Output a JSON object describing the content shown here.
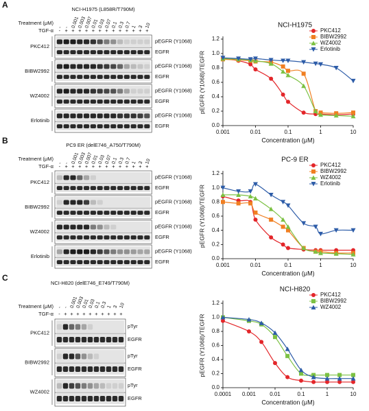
{
  "panels": [
    {
      "letter": "A",
      "blot": {
        "title": "NCI-H1975 (L858R/T790M)",
        "treatment_label": "Treatment (μM)",
        "tgf_label": "TGF-α",
        "treatments": [
          "-",
          "-",
          "0.001",
          "0.003",
          "0.007",
          "0.01",
          "0.03",
          "0.07",
          "0.1",
          "0.3",
          "0.7",
          "1",
          "3",
          "10"
        ],
        "tgf": [
          "-",
          "+",
          "+",
          "+",
          "+",
          "+",
          "+",
          "+",
          "+",
          "+",
          "+",
          "+",
          "+",
          "+"
        ],
        "phospho_label": "pEGFR (Y1068)",
        "total_label": "EGFR",
        "rows": [
          {
            "drug": "PKC412",
            "phospho": [
              0.9,
              0.95,
              0.95,
              0.9,
              0.9,
              0.85,
              0.7,
              0.5,
              0.4,
              0.2,
              0.1,
              0.1,
              0.1,
              0.1
            ]
          },
          {
            "drug": "BIBW2992",
            "phospho": [
              0.9,
              0.95,
              0.9,
              0.9,
              0.9,
              0.9,
              0.85,
              0.8,
              0.75,
              0.6,
              0.3,
              0.2,
              0.15,
              0.1
            ]
          },
          {
            "drug": "WZ4002",
            "phospho": [
              0.9,
              0.95,
              0.9,
              0.9,
              0.9,
              0.85,
              0.8,
              0.75,
              0.7,
              0.5,
              0.3,
              0.1,
              0.1,
              0.1
            ]
          },
          {
            "drug": "Erlotinib",
            "phospho": [
              0.9,
              0.9,
              0.9,
              0.9,
              0.9,
              0.9,
              0.9,
              0.9,
              0.9,
              0.85,
              0.85,
              0.85,
              0.8,
              0.7
            ]
          }
        ]
      }
    },
    {
      "letter": "B",
      "blot": {
        "title": "PC9 ER (delE746_A750/T790M)",
        "treatment_label": "Treatment (μM)",
        "tgf_label": "TGF-α",
        "treatments": [
          "-",
          "-",
          "0.001",
          "0.003",
          "0.007",
          "0.01",
          "0.03",
          "0.07",
          "0.1",
          "0.3",
          "0.7",
          "1",
          "3",
          "10"
        ],
        "tgf": [
          "-",
          "+",
          "+",
          "+",
          "+",
          "+",
          "+",
          "+",
          "+",
          "+",
          "+",
          "+",
          "+",
          "+"
        ],
        "phospho_label": "pEGFR (Y1068)",
        "total_label": "EGFR",
        "rows": [
          {
            "drug": "PKC412",
            "phospho": [
              0.2,
              0.9,
              0.9,
              0.6,
              0.3,
              0.1,
              0,
              0,
              0,
              0,
              0,
              0,
              0,
              0
            ]
          },
          {
            "drug": "BIBW2992",
            "phospho": [
              0.1,
              0.9,
              0.9,
              0.9,
              0.8,
              0.2,
              0.1,
              0,
              0,
              0,
              0,
              0,
              0,
              0
            ]
          },
          {
            "drug": "WZ4002",
            "phospho": [
              0.9,
              0.9,
              0.9,
              0.9,
              0.9,
              0.5,
              0.4,
              0.2,
              0.1,
              0,
              0,
              0,
              0,
              0
            ]
          },
          {
            "drug": "Erlotinib",
            "phospho": [
              0.3,
              0.9,
              0.95,
              0.95,
              0.95,
              0.9,
              0.8,
              0.7,
              0.5,
              0.4,
              0.4,
              0.35,
              0.3,
              0.3
            ]
          }
        ]
      }
    },
    {
      "letter": "C",
      "blot": {
        "title": "NCI-H820 (delE746_E749/T790M)",
        "treatment_label": "Treatment (μM)",
        "tgf_label": "TGF-α",
        "treatments": [
          "-",
          "-",
          "0.001",
          "0.003",
          "0.01",
          "0.03",
          "0.1",
          "0.3",
          "1",
          "3",
          "10"
        ],
        "tgf": [
          "-",
          "+",
          "+",
          "+",
          "+",
          "+",
          "+",
          "+",
          "+",
          "+",
          "+"
        ],
        "phospho_label": "pTyr",
        "total_label": "EGFR",
        "rows": [
          {
            "drug": "PKC412",
            "phospho": [
              0.1,
              0.9,
              0.6,
              0.5,
              0.3,
              0.1,
              0,
              0,
              0,
              0,
              0
            ]
          },
          {
            "drug": "BIBW2992",
            "phospho": [
              0.1,
              0.9,
              0.9,
              0.7,
              0.4,
              0.2,
              0.1,
              0,
              0,
              0,
              0
            ]
          },
          {
            "drug": "WZ4002",
            "phospho": [
              0.2,
              0.9,
              0.8,
              0.7,
              0.5,
              0.4,
              0.3,
              0.2,
              0.1,
              0.1,
              0.1
            ]
          }
        ]
      }
    }
  ],
  "chart_data": [
    {
      "type": "scatter",
      "title": "NCI-H1975",
      "x_label": "Concentration (μM)",
      "y_label": "pEGFR (Y1068)/TEGFR",
      "x_scale": "log",
      "xlim": [
        0.001,
        10
      ],
      "xticks": [
        0.001,
        0.01,
        0.1,
        1,
        10
      ],
      "ylim": [
        0,
        1.2
      ],
      "yticks": [
        {
          "value": 0,
          "label": "0.0"
        },
        0.2,
        0.4,
        0.6,
        0.8,
        {
          "value": 1,
          "label": "1.0"
        },
        1.2
      ],
      "legend": "upper right",
      "x": [
        0.001,
        0.003,
        0.007,
        0.01,
        0.03,
        0.07,
        0.1,
        0.3,
        0.7,
        1,
        3,
        10
      ],
      "series": [
        {
          "name": "PKC412",
          "color": "#e3262a",
          "marker": "circle",
          "values": [
            0.93,
            0.9,
            0.85,
            0.78,
            0.65,
            0.43,
            0.33,
            0.18,
            0.16,
            0.16,
            0.15,
            0.16
          ]
        },
        {
          "name": "BIBW2992",
          "color": "#f07f22",
          "marker": "square",
          "values": [
            0.92,
            0.91,
            0.9,
            0.89,
            0.88,
            0.82,
            0.76,
            0.72,
            0.2,
            0.18,
            0.17,
            0.18
          ]
        },
        {
          "name": "WZ4002",
          "color": "#7cc143",
          "marker": "triangle",
          "values": [
            0.93,
            0.92,
            0.91,
            0.9,
            0.86,
            0.75,
            0.7,
            0.55,
            0.2,
            0.15,
            0.14,
            0.13
          ]
        },
        {
          "name": "Erlotinib",
          "color": "#2d5ca8",
          "marker": "triangle-down",
          "values": [
            0.94,
            0.93,
            0.92,
            0.93,
            0.91,
            0.9,
            0.9,
            0.88,
            0.86,
            0.85,
            0.8,
            0.62
          ]
        }
      ]
    },
    {
      "type": "scatter",
      "title": "PC-9 ER",
      "x_label": "Concentration (μM)",
      "y_label": "pEGFR (Y1068)/TEGFR",
      "x_scale": "log",
      "xlim": [
        0.001,
        10
      ],
      "xticks": [
        0.001,
        0.01,
        0.1,
        1,
        10
      ],
      "ylim": [
        0,
        1.2
      ],
      "yticks": [
        {
          "value": 0,
          "label": "0.0"
        },
        0.2,
        0.4,
        0.6,
        0.8,
        {
          "value": 1,
          "label": "1.0"
        },
        1.2
      ],
      "legend": "upper right",
      "x": [
        0.001,
        0.003,
        0.007,
        0.01,
        0.03,
        0.07,
        0.1,
        0.3,
        0.7,
        1,
        3,
        10
      ],
      "series": [
        {
          "name": "PKC412",
          "color": "#e3262a",
          "marker": "circle",
          "values": [
            0.88,
            0.82,
            0.8,
            0.55,
            0.3,
            0.2,
            0.15,
            0.13,
            0.12,
            0.12,
            0.12,
            0.12
          ]
        },
        {
          "name": "BIBW2992",
          "color": "#f07f22",
          "marker": "square",
          "values": [
            0.8,
            0.78,
            0.78,
            0.65,
            0.55,
            0.45,
            0.4,
            0.15,
            0.1,
            0.1,
            0.08,
            0.08
          ]
        },
        {
          "name": "WZ4002",
          "color": "#7cc143",
          "marker": "triangle",
          "values": [
            0.9,
            0.9,
            0.88,
            0.85,
            0.7,
            0.55,
            0.45,
            0.15,
            0.1,
            0.08,
            0.07,
            0.06
          ]
        },
        {
          "name": "Erlotinib",
          "color": "#2d5ca8",
          "marker": "triangle-down",
          "values": [
            1,
            0.95,
            0.95,
            1.05,
            0.9,
            0.8,
            0.75,
            0.5,
            0.45,
            0.35,
            0.4,
            0.4
          ]
        }
      ]
    },
    {
      "type": "scatter",
      "title": "NCI-H820",
      "x_label": "Concentration (μM)",
      "y_label": "pEGFR (Y1068)/TEGFR",
      "x_scale": "log",
      "xlim": [
        0.0001,
        10
      ],
      "xticks": [
        0.0001,
        0.001,
        0.01,
        0.1,
        1,
        10
      ],
      "ylim": [
        0,
        1.2
      ],
      "yticks": [
        {
          "value": 0,
          "label": "0.0"
        },
        0.2,
        0.4,
        0.6,
        0.8,
        {
          "value": 1,
          "label": "1.0"
        },
        1.2
      ],
      "legend": "upper right",
      "x": [
        0.0001,
        0.001,
        0.003,
        0.01,
        0.03,
        0.1,
        0.3,
        1,
        3,
        10
      ],
      "series": [
        {
          "name": "PKC412",
          "color": "#e3262a",
          "marker": "circle",
          "values": [
            0.95,
            0.8,
            0.65,
            0.35,
            0.15,
            0.1,
            0.08,
            0.08,
            0.08,
            0.08
          ]
        },
        {
          "name": "BIBW2992",
          "color": "#7cc143",
          "marker": "square",
          "values": [
            1,
            0.95,
            0.9,
            0.72,
            0.45,
            0.2,
            0.18,
            0.18,
            0.18,
            0.18
          ]
        },
        {
          "name": "WZ4002",
          "color": "#2d5ca8",
          "marker": "triangle",
          "values": [
            1,
            0.97,
            0.92,
            0.78,
            0.55,
            0.25,
            0.15,
            0.13,
            0.13,
            0.13
          ]
        }
      ]
    }
  ]
}
